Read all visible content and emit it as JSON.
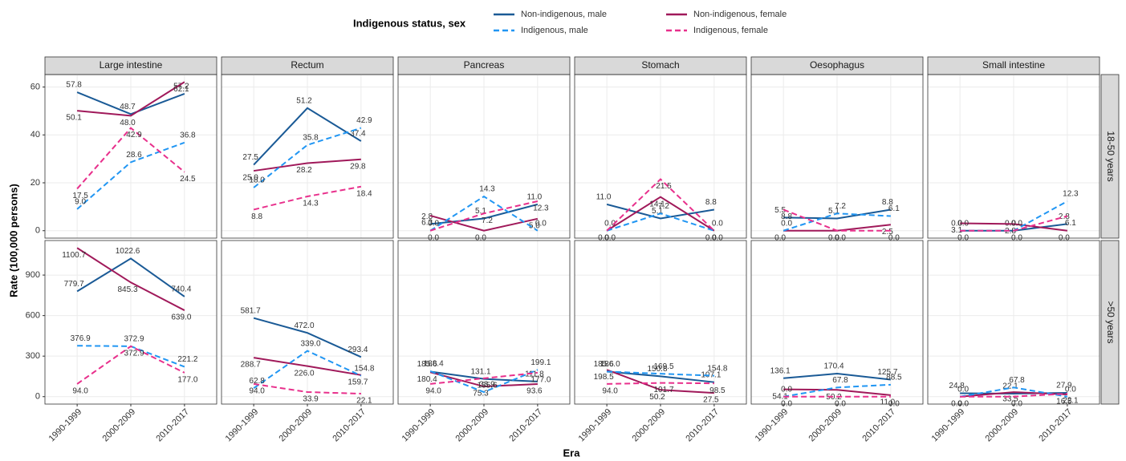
{
  "chart_data": {
    "type": "line",
    "legend_title": "Indigenous status, sex",
    "x_label": "Era",
    "y_label": "Rate (100,000 persons)",
    "grid": true,
    "categories": [
      "1990-1999",
      "2000-2009",
      "2010-2017"
    ],
    "columns": [
      "Large intestine",
      "Rectum",
      "Pancreas",
      "Stomach",
      "Oesophagus",
      "Small intestine"
    ],
    "rows": [
      {
        "label": "18-50 years",
        "ylim": [
          -3.1,
          65.2
        ],
        "yticks": [
          0,
          20,
          40,
          60
        ]
      },
      {
        "label": ">50 years",
        "ylim": [
          -55,
          1155.7
        ],
        "yticks": [
          0,
          300,
          600,
          900
        ]
      }
    ],
    "series": [
      {
        "name": "Non-indigenous, male",
        "color": "#1a5a96",
        "dashed": false
      },
      {
        "name": "Non-indigenous, female",
        "color": "#a0195a",
        "dashed": false
      },
      {
        "name": "Indigenous, male",
        "color": "#2196f3",
        "dashed": true
      },
      {
        "name": "Indigenous, female",
        "color": "#e8308c",
        "dashed": true
      }
    ],
    "panels": [
      {
        "series": [
          {
            "values": [
              57.8,
              48.7,
              57.2
            ],
            "value_labels": [
              "57.8",
              "48.7",
              "57.2"
            ]
          },
          {
            "values": [
              50.1,
              48.0,
              62.1
            ],
            "value_labels": [
              "50.1",
              "48.0",
              "62.1"
            ]
          },
          {
            "values": [
              9.0,
              28.6,
              36.8
            ],
            "value_labels": [
              "9.0",
              "28.6",
              "36.8"
            ]
          },
          {
            "values": [
              17.5,
              42.9,
              24.5
            ],
            "value_labels": [
              "17.5",
              "42.9",
              "24.5"
            ]
          }
        ]
      },
      {
        "series": [
          {
            "values": [
              27.5,
              51.2,
              37.4
            ],
            "value_labels": [
              "27.5",
              "51.2",
              "37.4"
            ]
          },
          {
            "values": [
              25.0,
              28.2,
              29.8
            ],
            "value_labels": [
              "25.0",
              "28.2",
              "29.8"
            ]
          },
          {
            "values": [
              18.0,
              35.8,
              42.9
            ],
            "value_labels": [
              "18.0",
              "35.8",
              "42.9"
            ]
          },
          {
            "values": [
              8.8,
              14.3,
              18.4
            ],
            "value_labels": [
              "8.8",
              "14.3",
              "18.4"
            ]
          }
        ]
      },
      {
        "series": [
          {
            "values": [
              2.8,
              5.1,
              11.0
            ],
            "value_labels": [
              "2.8",
              "5.1",
              "11.0"
            ]
          },
          {
            "values": [
              6.3,
              0.0,
              5.0
            ],
            "value_labels": [
              "6.3",
              "0.0",
              "5.0"
            ]
          },
          {
            "values": [
              0.0,
              14.3,
              0.0
            ],
            "value_labels": [
              "0.0",
              "14.3",
              "0.0"
            ]
          },
          {
            "values": [
              0.0,
              7.2,
              12.3
            ],
            "value_labels": [
              "0.0",
              "7.2",
              "12.3"
            ]
          }
        ]
      },
      {
        "series": [
          {
            "values": [
              11.0,
              5.1,
              8.8
            ],
            "value_labels": [
              "11.0",
              "5.1",
              "8.8"
            ]
          },
          {
            "values": [
              0.0,
              14.1,
              0.0
            ],
            "value_labels": [
              "0.0",
              "14.1",
              "0.0"
            ]
          },
          {
            "values": [
              0.0,
              7.2,
              0.0
            ],
            "value_labels": [
              "0.0",
              "7.2",
              "0.0"
            ]
          },
          {
            "values": [
              0.0,
              21.5,
              0.0
            ],
            "value_labels": [
              "0.0",
              "21.5",
              "0.0"
            ]
          }
        ]
      },
      {
        "series": [
          {
            "values": [
              5.5,
              5.1,
              8.8
            ],
            "value_labels": [
              "5.5",
              "5.1",
              "8.8"
            ]
          },
          {
            "values": [
              0.0,
              0.0,
              2.5
            ],
            "value_labels": [
              "0.0",
              "0.0",
              "2.5"
            ]
          },
          {
            "values": [
              0.0,
              7.2,
              6.1
            ],
            "value_labels": [
              "0.0",
              "7.2",
              "6.1"
            ]
          },
          {
            "values": [
              8.8,
              0.0,
              0.0
            ],
            "value_labels": [
              "8.8",
              "0.0",
              "0.0"
            ]
          }
        ]
      },
      {
        "series": [
          {
            "values": [
              0.0,
              0.0,
              2.8
            ],
            "value_labels": [
              "0.0",
              "0.0",
              "2.8"
            ]
          },
          {
            "values": [
              3.1,
              2.8,
              0.0
            ],
            "value_labels": [
              "3.1",
              "2.8",
              "0.0"
            ]
          },
          {
            "values": [
              0.0,
              0.0,
              12.3
            ],
            "value_labels": [
              "0.0",
              "0.0",
              "12.3"
            ]
          },
          {
            "values": [
              0.0,
              0.0,
              6.1
            ],
            "value_labels": [
              "0.0",
              "0.0",
              "6.1"
            ]
          }
        ]
      },
      {
        "series": [
          {
            "values": [
              779.7,
              1022.6,
              740.4
            ],
            "value_labels": [
              "779.7",
              "1022.6",
              "740.4"
            ]
          },
          {
            "values": [
              1100.7,
              845.3,
              639.0
            ],
            "value_labels": [
              "1100.7",
              "845.3",
              "639.0"
            ]
          },
          {
            "values": [
              376.9,
              372.9,
              221.2
            ],
            "value_labels": [
              "376.9",
              "372.9",
              "221.2"
            ]
          },
          {
            "values": [
              94.0,
              372.9,
              177.0
            ],
            "value_labels": [
              "94.0",
              "372.9",
              "177.0"
            ]
          }
        ]
      },
      {
        "series": [
          {
            "values": [
              581.7,
              472.0,
              293.4
            ],
            "value_labels": [
              "581.7",
              "472.0",
              "293.4"
            ]
          },
          {
            "values": [
              288.7,
              226.0,
              159.7
            ],
            "value_labels": [
              "288.7",
              "226.0",
              "159.7"
            ]
          },
          {
            "values": [
              62.8,
              339.0,
              154.8
            ],
            "value_labels": [
              "62.8",
              "339.0",
              "154.8"
            ]
          },
          {
            "values": [
              94.0,
              33.9,
              22.1
            ],
            "value_labels": [
              "94.0",
              "33.9",
              "22.1"
            ]
          }
        ]
      },
      {
        "series": [
          {
            "values": [
              185.6,
              131.1,
              111.8
            ],
            "value_labels": [
              "185.6",
              "131.1",
              "111.8"
            ]
          },
          {
            "values": [
              180.4,
              75.3,
              93.6
            ],
            "value_labels": [
              "180.4",
              "75.3",
              "93.6"
            ]
          },
          {
            "values": [
              188.4,
              33.9,
              199.1
            ],
            "value_labels": [
              "188.4",
              "33.9",
              "199.1"
            ]
          },
          {
            "values": [
              94.0,
              135.6,
              177.0
            ],
            "value_labels": [
              "94.0",
              "135.6",
              "177.0"
            ]
          }
        ]
      },
      {
        "series": [
          {
            "values": [
              185.6,
              150.8,
              107.1
            ],
            "value_labels": [
              "185.6",
              "150.8",
              "107.1"
            ]
          },
          {
            "values": [
              198.5,
              50.2,
              27.5
            ],
            "value_labels": [
              "198.5",
              "50.2",
              "27.5"
            ]
          },
          {
            "values": [
              186.0,
              169.5,
              154.8
            ],
            "value_labels": [
              "186.0",
              "169.5",
              "154.8"
            ]
          },
          {
            "values": [
              94.0,
              101.7,
              98.5
            ],
            "value_labels": [
              "94.0",
              "101.7",
              "98.5"
            ]
          }
        ]
      },
      {
        "series": [
          {
            "values": [
              136.1,
              170.4,
              125.7
            ],
            "value_labels": [
              "136.1",
              "170.4",
              "125.7"
            ]
          },
          {
            "values": [
              54.1,
              50.2,
              11.0
            ],
            "value_labels": [
              "54.1",
              "50.2",
              "11.0"
            ]
          },
          {
            "values": [
              0.0,
              67.8,
              88.5
            ],
            "value_labels": [
              "0.0",
              "67.8",
              "88.5"
            ]
          },
          {
            "values": [
              0.0,
              0.0,
              0.0
            ],
            "value_labels": [
              "0.0",
              "0.0",
              "0.0"
            ]
          }
        ]
      },
      {
        "series": [
          {
            "values": [
              24.8,
              22.1,
              27.9
            ],
            "value_labels": [
              "24.8",
              "22.1",
              "27.9"
            ]
          },
          {
            "values": [
              0.0,
              33.5,
              16.5
            ],
            "value_labels": [
              "0.0",
              "33.5",
              "16.5"
            ]
          },
          {
            "values": [
              0.0,
              67.8,
              0.0
            ],
            "value_labels": [
              "0.0",
              "67.8",
              "0.0"
            ]
          },
          {
            "values": [
              0.0,
              0.0,
              22.1
            ],
            "value_labels": [
              "0.0",
              "0.0",
              "22.1"
            ]
          }
        ]
      }
    ]
  }
}
